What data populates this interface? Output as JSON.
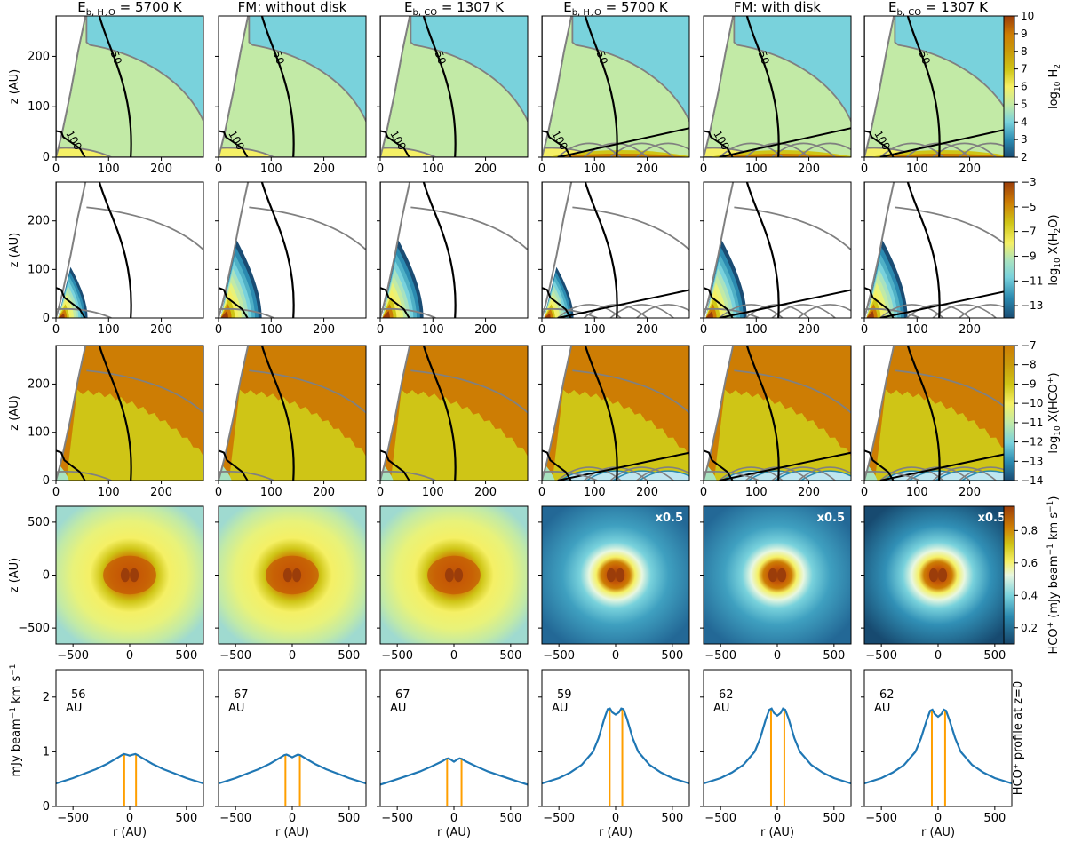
{
  "figure": {
    "columns": [
      {
        "title_main": "E",
        "title_sub": "b, H",
        "title_sub2": "2",
        "title_sub3": "O",
        "title_rest": " = 5700 K",
        "kind": "sub"
      },
      {
        "title_plain": "FM: without disk",
        "kind": "plain"
      },
      {
        "title_main": "E",
        "title_sub": "b, CO",
        "title_rest": " = 1307 K",
        "kind": "sub"
      },
      {
        "title_main": "E",
        "title_sub": "b, H",
        "title_sub2": "2",
        "title_sub3": "O",
        "title_rest": " = 5700 K",
        "kind": "sub"
      },
      {
        "title_plain": "FM: with disk",
        "kind": "plain"
      },
      {
        "title_main": "E",
        "title_sub": "b, CO",
        "title_rest": " = 1307 K",
        "kind": "sub"
      }
    ],
    "ylabels": {
      "z": "z (AU)",
      "profile_unit_a": "mJy beam",
      "profile_unit_sup": "−1",
      "profile_unit_b": " km s",
      "profile_unit_sup2": "−1"
    },
    "xlabel": "r (AU)",
    "contour_labels": {
      "temp50": "50",
      "temp100": "100"
    },
    "scale_label": "x0.5",
    "right_label": "HCO⁺ profile at z=0"
  },
  "chart_data": [
    {
      "type": "heatmap",
      "row": 1,
      "quantity": "log10 H2",
      "colorbar_label_a": "log",
      "colorbar_label_sub": "10",
      "colorbar_label_b": " H",
      "colorbar_label_sub2": "2",
      "colorbar_ticks": [
        2,
        3,
        4,
        5,
        6,
        7,
        8,
        9,
        10
      ],
      "colorbar_range": [
        2,
        10
      ],
      "xlim": [
        0,
        280
      ],
      "ylim": [
        0,
        280
      ],
      "xticks": [
        0,
        100,
        200
      ],
      "yticks": [
        0,
        100,
        200
      ]
    },
    {
      "type": "heatmap",
      "row": 2,
      "quantity": "log10 X(H2O)",
      "colorbar_label_a": "log",
      "colorbar_label_sub": "10",
      "colorbar_label_b": " X(H",
      "colorbar_label_sub2": "2",
      "colorbar_label_c": "O)",
      "colorbar_ticks": [
        -3,
        -5,
        -7,
        -9,
        -11,
        -13
      ],
      "colorbar_range": [
        -14,
        -3
      ],
      "xlim": [
        0,
        280
      ],
      "ylim": [
        0,
        280
      ],
      "xticks": [
        0,
        100,
        200
      ],
      "yticks": [
        0,
        100,
        200
      ]
    },
    {
      "type": "heatmap",
      "row": 3,
      "quantity": "log10 X(HCO+)",
      "colorbar_label_a": "log",
      "colorbar_label_sub": "10",
      "colorbar_label_b": " X(HCO",
      "colorbar_label_sup": "+",
      "colorbar_label_c": ")",
      "colorbar_ticks": [
        -7,
        -8,
        -9,
        -10,
        -11,
        -12,
        -13,
        -14
      ],
      "colorbar_range": [
        -14,
        -7
      ],
      "xlim": [
        0,
        280
      ],
      "ylim": [
        0,
        280
      ],
      "xticks": [
        0,
        100,
        200
      ],
      "yticks": [
        0,
        100,
        200
      ]
    },
    {
      "type": "heatmap",
      "row": 4,
      "quantity": "HCO+ (mJy beam-1 km s-1)",
      "colorbar_label_a": "HCO",
      "colorbar_label_sup": "+",
      "colorbar_label_b": " (mJy beam",
      "colorbar_label_sup2": "−1",
      "colorbar_label_c": " km s",
      "colorbar_label_sup3": "−1",
      "colorbar_label_d": ")",
      "colorbar_ticks": [
        0.2,
        0.4,
        0.6,
        0.8
      ],
      "colorbar_range": [
        0.1,
        0.95
      ],
      "xlim": [
        -650,
        650
      ],
      "ylim": [
        -650,
        650
      ],
      "xticks": [
        -500,
        0,
        500
      ],
      "yticks": [
        -500,
        0,
        500
      ],
      "scaled_panels": [
        3,
        4,
        5
      ]
    },
    {
      "type": "line",
      "row": 5,
      "quantity": "HCO+ profile at z=0",
      "xlim": [
        -650,
        650
      ],
      "ylim": [
        0,
        2.5
      ],
      "xticks": [
        -500,
        0,
        500
      ],
      "yticks": [
        0,
        1,
        2
      ],
      "x": [
        -650,
        -500,
        -400,
        -300,
        -200,
        -150,
        -100,
        -70,
        -50,
        -30,
        0,
        30,
        50,
        70,
        100,
        150,
        200,
        300,
        400,
        500,
        650
      ],
      "series": [
        {
          "name": "panel1",
          "peak_sep_label": "56",
          "peak_sep_unit": "AU",
          "peak_r": [
            -48,
            56
          ],
          "values": [
            0.42,
            0.52,
            0.6,
            0.68,
            0.78,
            0.84,
            0.9,
            0.94,
            0.96,
            0.95,
            0.93,
            0.95,
            0.96,
            0.94,
            0.9,
            0.84,
            0.78,
            0.68,
            0.6,
            0.52,
            0.42
          ]
        },
        {
          "name": "panel2",
          "peak_sep_label": "67",
          "peak_sep_unit": "AU",
          "peak_r": [
            -60,
            67
          ],
          "values": [
            0.42,
            0.52,
            0.6,
            0.68,
            0.78,
            0.84,
            0.9,
            0.94,
            0.95,
            0.93,
            0.9,
            0.93,
            0.95,
            0.94,
            0.9,
            0.84,
            0.78,
            0.68,
            0.6,
            0.52,
            0.42
          ]
        },
        {
          "name": "panel3",
          "peak_sep_label": "67",
          "peak_sep_unit": "AU",
          "peak_r": [
            -60,
            67
          ],
          "values": [
            0.4,
            0.5,
            0.57,
            0.64,
            0.73,
            0.78,
            0.83,
            0.87,
            0.88,
            0.86,
            0.82,
            0.86,
            0.88,
            0.87,
            0.83,
            0.78,
            0.73,
            0.64,
            0.57,
            0.5,
            0.4
          ]
        },
        {
          "name": "panel4",
          "peak_sep_label": "59",
          "peak_sep_unit": "AU",
          "peak_r": [
            -52,
            59
          ],
          "values": [
            0.42,
            0.52,
            0.62,
            0.76,
            1.0,
            1.25,
            1.6,
            1.78,
            1.79,
            1.72,
            1.68,
            1.72,
            1.79,
            1.78,
            1.6,
            1.25,
            1.0,
            0.76,
            0.62,
            0.52,
            0.42
          ]
        },
        {
          "name": "panel5",
          "peak_sep_label": "62",
          "peak_sep_unit": "AU",
          "peak_r": [
            -55,
            62
          ],
          "values": [
            0.42,
            0.52,
            0.62,
            0.76,
            1.0,
            1.25,
            1.6,
            1.77,
            1.79,
            1.71,
            1.66,
            1.71,
            1.79,
            1.77,
            1.6,
            1.25,
            1.0,
            0.76,
            0.62,
            0.52,
            0.42
          ]
        },
        {
          "name": "panel6",
          "peak_sep_label": "62",
          "peak_sep_unit": "AU",
          "peak_r": [
            -55,
            62
          ],
          "values": [
            0.42,
            0.52,
            0.62,
            0.76,
            1.0,
            1.25,
            1.58,
            1.75,
            1.77,
            1.69,
            1.64,
            1.69,
            1.77,
            1.75,
            1.58,
            1.25,
            1.0,
            0.76,
            0.62,
            0.52,
            0.42
          ]
        }
      ]
    }
  ],
  "colors": {
    "cyan": "#79d2dc",
    "green": "#c2eaa6",
    "yellow": "#f5f065",
    "olive": "#cfc516",
    "orange": "#cd7d04",
    "brown": "#9b3d0a",
    "navy": "#1a4c73",
    "profile_line": "#1f77b4",
    "peak_line": "#ff9f00",
    "contour_gray": "#808080",
    "contour_black": "#000000"
  }
}
